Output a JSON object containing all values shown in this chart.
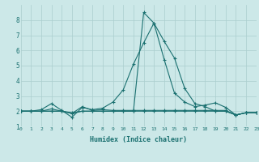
{
  "xlabel": "Humidex (Indice chaleur)",
  "x": [
    0,
    1,
    2,
    3,
    4,
    5,
    6,
    7,
    8,
    9,
    10,
    11,
    12,
    13,
    14,
    15,
    16,
    17,
    18,
    19,
    20,
    21,
    22,
    23
  ],
  "lines": [
    [
      2.0,
      2.0,
      2.0,
      2.0,
      2.0,
      1.85,
      2.3,
      2.05,
      2.1,
      2.05,
      2.05,
      2.05,
      2.05,
      2.05,
      2.05,
      2.05,
      2.05,
      2.05,
      2.05,
      2.05,
      2.05,
      1.75,
      1.9,
      1.9
    ],
    [
      2.0,
      2.0,
      2.0,
      2.15,
      2.0,
      1.9,
      2.0,
      2.0,
      2.0,
      2.0,
      2.0,
      2.0,
      2.0,
      2.0,
      2.0,
      2.0,
      2.0,
      2.0,
      2.0,
      2.0,
      2.0,
      1.75,
      1.9,
      1.9
    ],
    [
      2.0,
      2.0,
      2.1,
      2.5,
      2.05,
      1.6,
      2.25,
      2.1,
      2.2,
      2.6,
      3.4,
      5.1,
      6.5,
      7.8,
      5.4,
      3.2,
      2.6,
      2.3,
      2.4,
      2.55,
      2.25,
      1.75,
      1.9,
      1.9
    ],
    [
      2.0,
      2.0,
      2.0,
      2.0,
      2.0,
      1.85,
      2.0,
      2.0,
      2.0,
      2.0,
      2.0,
      2.0,
      8.5,
      7.8,
      6.6,
      5.5,
      3.5,
      2.5,
      2.3,
      2.0,
      2.0,
      1.75,
      1.9,
      1.9
    ]
  ],
  "line_color": "#1a7070",
  "bg_color": "#cce8e8",
  "grid_color": "#aacece",
  "marker": "+",
  "ylim": [
    1,
    9
  ],
  "yticks": [
    1,
    2,
    3,
    4,
    5,
    6,
    7,
    8
  ],
  "xticks": [
    0,
    1,
    2,
    3,
    4,
    5,
    6,
    7,
    8,
    9,
    10,
    11,
    12,
    13,
    14,
    15,
    16,
    17,
    18,
    19,
    20,
    21,
    22,
    23
  ],
  "xlim": [
    0,
    23
  ]
}
